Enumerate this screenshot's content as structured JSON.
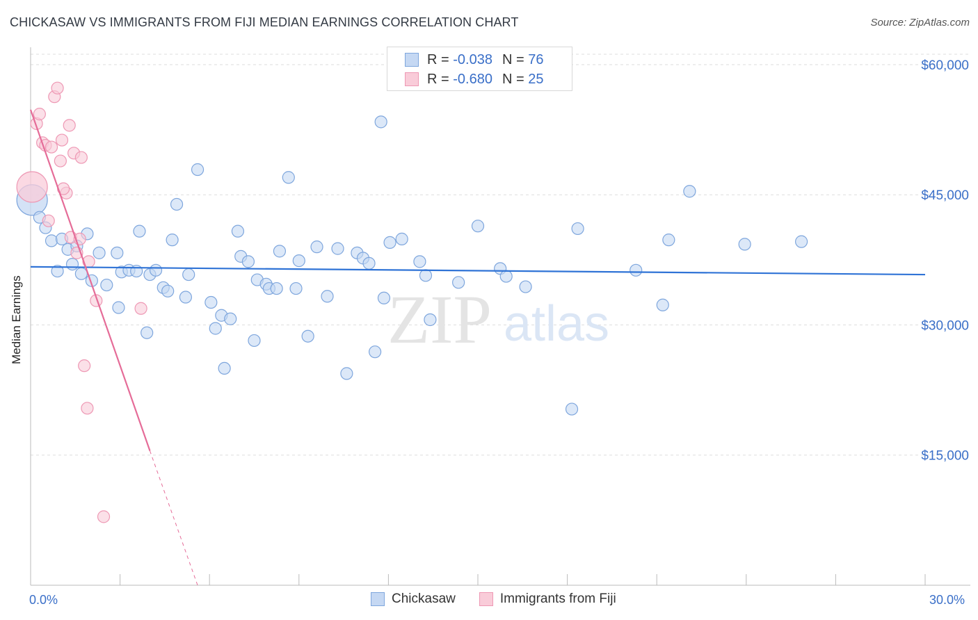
{
  "title": "CHICKASAW VS IMMIGRANTS FROM FIJI MEDIAN EARNINGS CORRELATION CHART",
  "source": "Source: ZipAtlas.com",
  "watermark": {
    "zip": "ZIP",
    "atlas": "atlas"
  },
  "colors": {
    "blue_fill": "#c5d8f3",
    "blue_stroke": "#7ea6dd",
    "blue_line": "#2f73d6",
    "pink_fill": "#f9ccd9",
    "pink_stroke": "#ee98b4",
    "pink_line": "#e56c98",
    "axis_text": "#3a6fc8",
    "grid": "#dddddd"
  },
  "legend_top": [
    {
      "r_label": "R =",
      "r_value": "-0.038",
      "n_label": "N =",
      "n_value": "76",
      "series": "blue"
    },
    {
      "r_label": "R =",
      "r_value": "-0.680",
      "n_label": "N =",
      "n_value": "25",
      "series": "pink"
    }
  ],
  "legend_bottom": [
    "Chickasaw",
    "Immigrants from Fiji"
  ],
  "chart_data": {
    "type": "scatter",
    "xlabel": "",
    "ylabel": "Median Earnings",
    "xlim": [
      0,
      30
    ],
    "ylim": [
      0,
      62000
    ],
    "x_tick_labels": [
      "0.0%",
      "30.0%"
    ],
    "y_ticks": [
      {
        "value": 15000,
        "label": "$15,000"
      },
      {
        "value": 30000,
        "label": "$30,000"
      },
      {
        "value": 45000,
        "label": "$45,000"
      },
      {
        "value": 60000,
        "label": "$60,000"
      }
    ],
    "series": [
      {
        "name": "Chickasaw",
        "color": "blue",
        "trend": {
          "x0": 0,
          "y0": 36700,
          "x1": 30,
          "y1": 35800,
          "dashed_to": null
        },
        "points": [
          [
            0.05,
            44400,
            "big"
          ],
          [
            0.3,
            42400
          ],
          [
            0.5,
            41200
          ],
          [
            0.7,
            39700
          ],
          [
            0.9,
            36200
          ],
          [
            1.05,
            39900
          ],
          [
            1.25,
            38700
          ],
          [
            1.4,
            37000
          ],
          [
            1.55,
            39100
          ],
          [
            1.7,
            35900
          ],
          [
            1.9,
            40500
          ],
          [
            2.05,
            35100
          ],
          [
            2.3,
            38300
          ],
          [
            2.55,
            34600
          ],
          [
            2.9,
            38300
          ],
          [
            2.95,
            32000
          ],
          [
            3.05,
            36100
          ],
          [
            3.3,
            36300
          ],
          [
            3.55,
            36200
          ],
          [
            3.65,
            40800
          ],
          [
            3.9,
            29100
          ],
          [
            4.0,
            35800
          ],
          [
            4.2,
            36300
          ],
          [
            4.45,
            34300
          ],
          [
            4.6,
            33900
          ],
          [
            4.75,
            39800
          ],
          [
            4.9,
            43900
          ],
          [
            5.2,
            33200
          ],
          [
            5.3,
            35800
          ],
          [
            5.6,
            47900
          ],
          [
            6.05,
            32600
          ],
          [
            6.2,
            29600
          ],
          [
            6.4,
            31100
          ],
          [
            6.5,
            25000
          ],
          [
            6.7,
            30700
          ],
          [
            6.95,
            40800
          ],
          [
            7.05,
            37900
          ],
          [
            7.3,
            37300
          ],
          [
            7.5,
            28200
          ],
          [
            7.6,
            35200
          ],
          [
            7.9,
            34700
          ],
          [
            8.0,
            34200
          ],
          [
            8.25,
            34200
          ],
          [
            8.35,
            38500
          ],
          [
            8.65,
            47000
          ],
          [
            8.9,
            34200
          ],
          [
            9.0,
            37400
          ],
          [
            9.3,
            28700
          ],
          [
            9.6,
            39000
          ],
          [
            9.95,
            33300
          ],
          [
            10.3,
            38800
          ],
          [
            10.6,
            24400
          ],
          [
            10.95,
            38300
          ],
          [
            11.15,
            37700
          ],
          [
            11.35,
            37100
          ],
          [
            11.55,
            26900
          ],
          [
            11.75,
            53400
          ],
          [
            11.85,
            33100
          ],
          [
            12.05,
            39500
          ],
          [
            12.45,
            39900
          ],
          [
            13.05,
            37300
          ],
          [
            13.25,
            35700
          ],
          [
            13.4,
            30600
          ],
          [
            14.35,
            34900
          ],
          [
            15.0,
            41400
          ],
          [
            15.75,
            36500
          ],
          [
            15.95,
            35600
          ],
          [
            16.6,
            34400
          ],
          [
            18.15,
            20300
          ],
          [
            18.35,
            41100
          ],
          [
            20.3,
            36300
          ],
          [
            21.2,
            32300
          ],
          [
            21.4,
            39800
          ],
          [
            22.1,
            45400
          ],
          [
            23.95,
            39300
          ],
          [
            25.85,
            39600
          ]
        ]
      },
      {
        "name": "Immigrants from Fiji",
        "color": "pink",
        "trend": {
          "x0": 0,
          "y0": 54800,
          "x1": 4.0,
          "y1": 15500,
          "dashed_to": {
            "x": 5.6,
            "y": 0
          }
        },
        "points": [
          [
            0.05,
            45900,
            "big"
          ],
          [
            0.2,
            53200
          ],
          [
            0.3,
            54300
          ],
          [
            0.4,
            51000
          ],
          [
            0.5,
            50700
          ],
          [
            0.6,
            42000
          ],
          [
            0.7,
            50500
          ],
          [
            0.8,
            56300
          ],
          [
            0.9,
            57300
          ],
          [
            1.0,
            48900
          ],
          [
            1.05,
            51300
          ],
          [
            1.2,
            45200
          ],
          [
            1.3,
            53000
          ],
          [
            1.35,
            40100
          ],
          [
            1.45,
            49800
          ],
          [
            1.55,
            38300
          ],
          [
            1.65,
            39900
          ],
          [
            1.7,
            49300
          ],
          [
            1.8,
            25300
          ],
          [
            1.9,
            20400
          ],
          [
            1.95,
            37300
          ],
          [
            2.2,
            32800
          ],
          [
            2.45,
            7900
          ],
          [
            3.7,
            31900
          ],
          [
            1.1,
            45700
          ]
        ]
      }
    ]
  }
}
